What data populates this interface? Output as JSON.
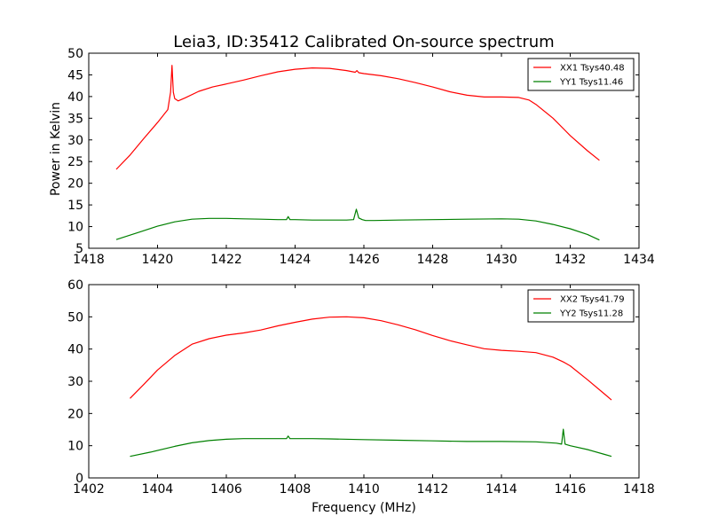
{
  "chart_data": {
    "title": "Leia3, ID:35412 Calibrated On-source spectrum",
    "ylabel": "Power in Kelvin",
    "xlabel": "Frequency (MHz)",
    "panels": [
      {
        "type": "line",
        "xlim": [
          1418,
          1434
        ],
        "ylim": [
          5,
          50
        ],
        "xticks": [
          1418,
          1420,
          1422,
          1424,
          1426,
          1428,
          1430,
          1432,
          1434
        ],
        "yticks": [
          5,
          10,
          15,
          20,
          25,
          30,
          35,
          40,
          45,
          50
        ],
        "legend": "top-right",
        "series": [
          {
            "name": "XX1 Tsys40.48",
            "color": "#ff0000",
            "x": [
              1418.8,
              1419.2,
              1419.6,
              1420.0,
              1420.3,
              1420.38,
              1420.42,
              1420.46,
              1420.5,
              1420.6,
              1420.8,
              1421.2,
              1421.6,
              1422.0,
              1422.5,
              1423.0,
              1423.5,
              1424.0,
              1424.5,
              1425.0,
              1425.5,
              1425.75,
              1425.8,
              1425.85,
              1426.0,
              1426.5,
              1427.0,
              1427.5,
              1428.0,
              1428.5,
              1429.0,
              1429.5,
              1430.0,
              1430.5,
              1430.8,
              1431.0,
              1431.5,
              1432.0,
              1432.5,
              1432.85
            ],
            "y": [
              23.2,
              26.5,
              30.3,
              34.0,
              37.0,
              41.0,
              47.2,
              41.0,
              39.5,
              39.0,
              39.7,
              41.2,
              42.2,
              42.9,
              43.8,
              44.8,
              45.7,
              46.3,
              46.6,
              46.5,
              46.0,
              45.6,
              46.0,
              45.5,
              45.3,
              44.8,
              44.1,
              43.2,
              42.2,
              41.1,
              40.3,
              39.9,
              39.9,
              39.8,
              39.2,
              38.2,
              35.0,
              31.0,
              27.5,
              25.3
            ]
          },
          {
            "name": "YY1 Tsys11.46",
            "color": "#008000",
            "x": [
              1418.8,
              1419.5,
              1420.0,
              1420.5,
              1421.0,
              1421.5,
              1422.0,
              1422.5,
              1423.0,
              1423.5,
              1423.75,
              1423.8,
              1423.85,
              1424.0,
              1424.5,
              1425.0,
              1425.5,
              1425.7,
              1425.78,
              1425.85,
              1425.95,
              1426.05,
              1426.3,
              1427.0,
              1428.0,
              1429.0,
              1430.0,
              1430.5,
              1431.0,
              1431.5,
              1432.0,
              1432.5,
              1432.85
            ],
            "y": [
              7.0,
              8.8,
              10.1,
              11.1,
              11.7,
              11.9,
              11.9,
              11.8,
              11.7,
              11.6,
              11.6,
              12.3,
              11.6,
              11.6,
              11.5,
              11.5,
              11.5,
              11.6,
              14.0,
              12.0,
              11.6,
              11.4,
              11.4,
              11.5,
              11.6,
              11.7,
              11.8,
              11.7,
              11.3,
              10.5,
              9.5,
              8.2,
              6.9
            ]
          }
        ]
      },
      {
        "type": "line",
        "xlim": [
          1402,
          1418
        ],
        "ylim": [
          0,
          60
        ],
        "xticks": [
          1402,
          1404,
          1406,
          1408,
          1410,
          1412,
          1414,
          1416,
          1418
        ],
        "yticks": [
          0,
          10,
          20,
          30,
          40,
          50,
          60
        ],
        "legend": "top-right",
        "series": [
          {
            "name": "XX2 Tsys41.79",
            "color": "#ff0000",
            "x": [
              1403.2,
              1403.6,
              1404.0,
              1404.5,
              1405.0,
              1405.5,
              1406.0,
              1406.5,
              1407.0,
              1407.5,
              1408.0,
              1408.5,
              1409.0,
              1409.5,
              1410.0,
              1410.5,
              1411.0,
              1411.5,
              1412.0,
              1412.5,
              1413.0,
              1413.5,
              1414.0,
              1414.5,
              1415.0,
              1415.5,
              1415.8,
              1416.0,
              1416.5,
              1417.0,
              1417.2
            ],
            "y": [
              24.7,
              29.0,
              33.5,
              38.0,
              41.5,
              43.2,
              44.3,
              45.0,
              45.9,
              47.2,
              48.3,
              49.3,
              49.9,
              50.0,
              49.7,
              48.8,
              47.5,
              46.0,
              44.2,
              42.6,
              41.3,
              40.1,
              39.6,
              39.3,
              38.9,
              37.5,
              36.0,
              34.8,
              30.5,
              26.0,
              24.2
            ]
          },
          {
            "name": "YY2 Tsys11.28",
            "color": "#008000",
            "x": [
              1403.2,
              1403.8,
              1404.5,
              1405.0,
              1405.5,
              1406.0,
              1406.5,
              1407.0,
              1407.5,
              1407.75,
              1407.8,
              1407.85,
              1408.0,
              1408.5,
              1409.0,
              1410.0,
              1411.0,
              1412.0,
              1413.0,
              1414.0,
              1415.0,
              1415.6,
              1415.75,
              1415.8,
              1415.85,
              1416.0,
              1416.5,
              1417.0,
              1417.2
            ],
            "y": [
              6.7,
              8.0,
              9.8,
              10.9,
              11.6,
              12.0,
              12.2,
              12.2,
              12.2,
              12.2,
              13.0,
              12.2,
              12.2,
              12.2,
              12.1,
              11.9,
              11.7,
              11.5,
              11.3,
              11.3,
              11.2,
              10.8,
              10.5,
              15.1,
              10.5,
              10.0,
              8.8,
              7.3,
              6.7
            ]
          }
        ]
      }
    ]
  }
}
